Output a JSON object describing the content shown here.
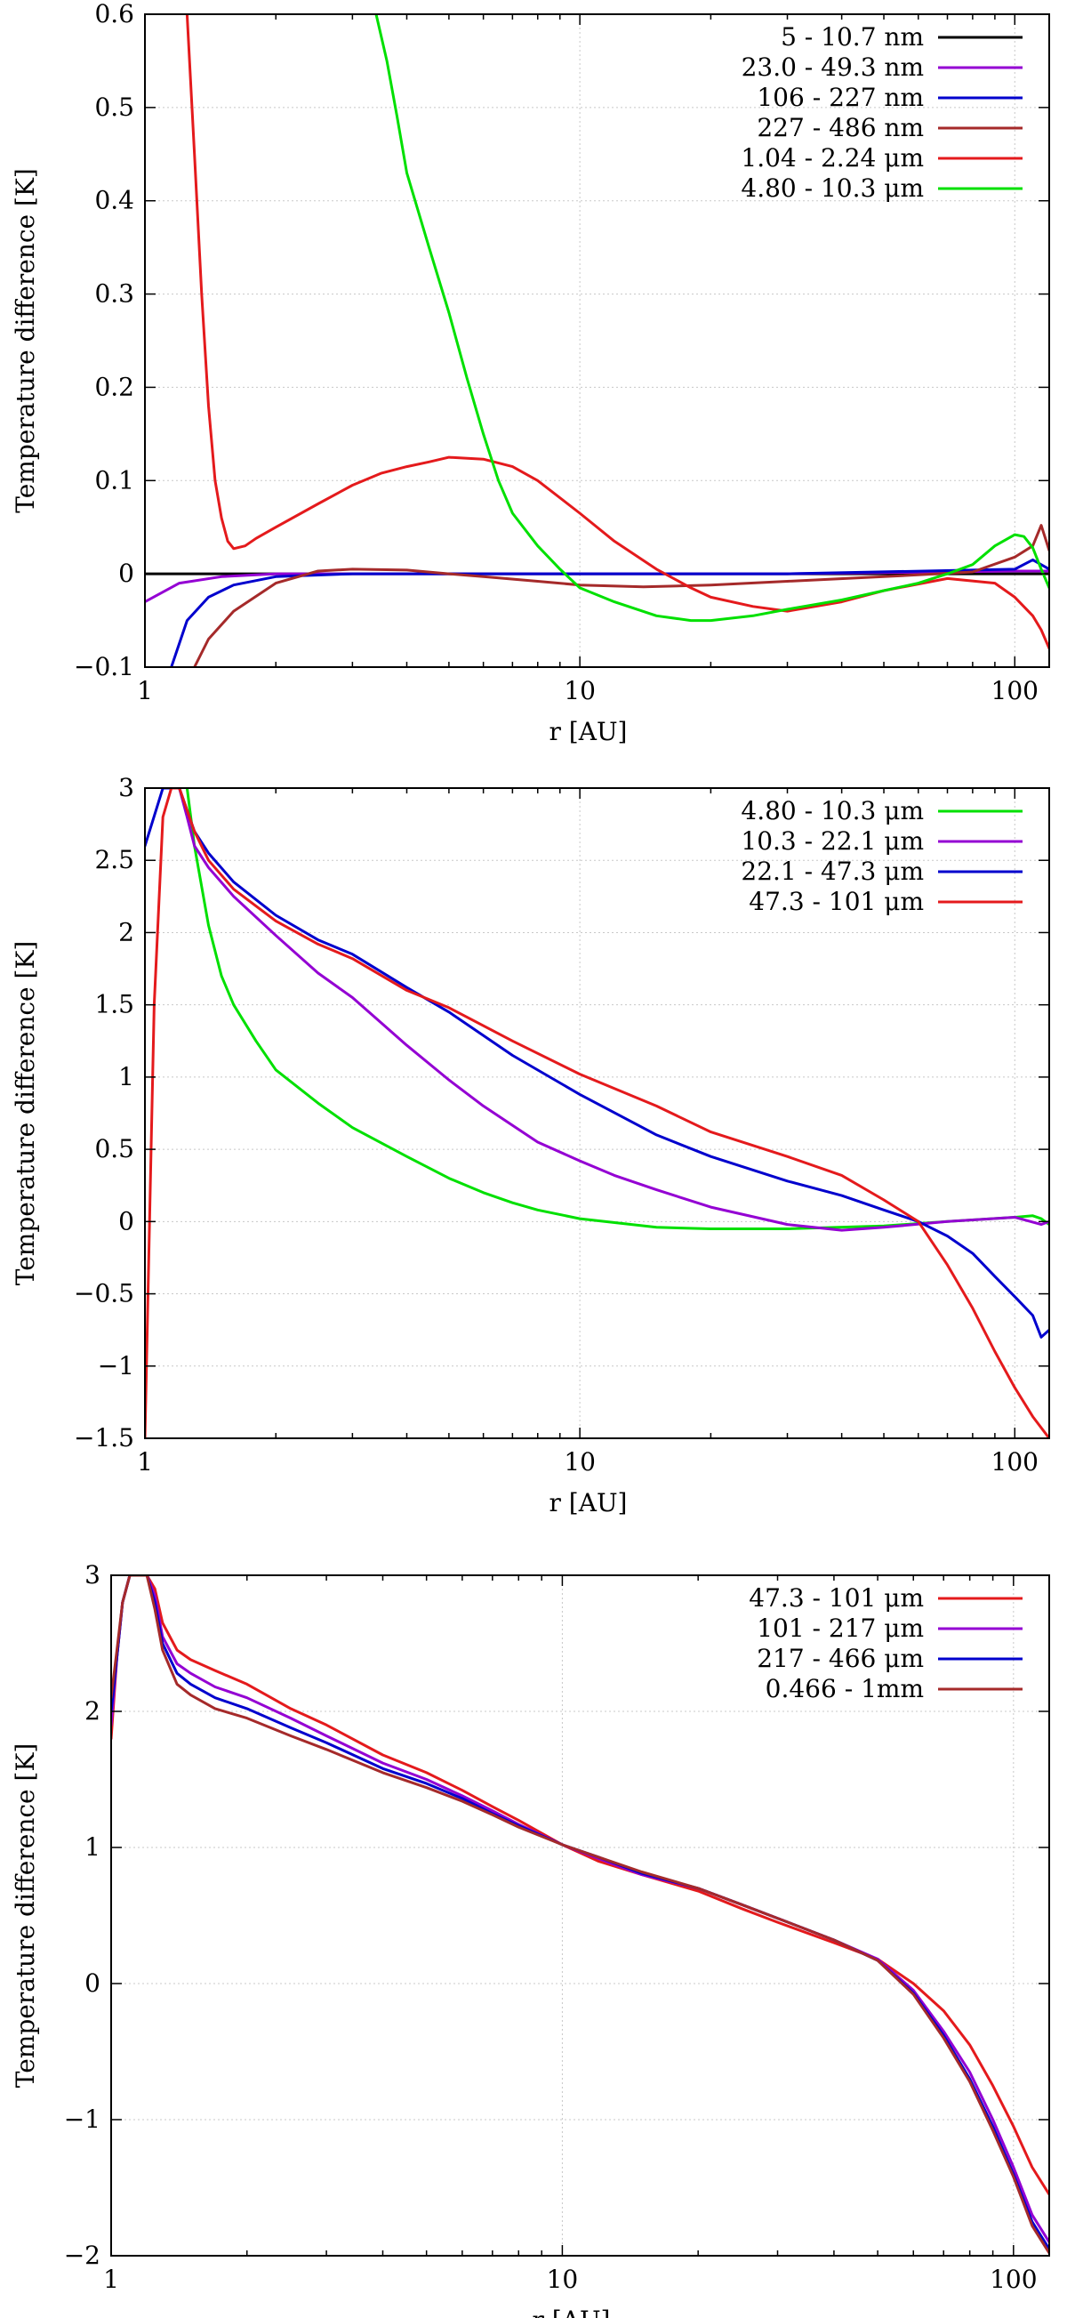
{
  "chart_data": [
    {
      "type": "line",
      "xscale": "log",
      "xlim": [
        1,
        120
      ],
      "ylim": [
        -0.1,
        0.6
      ],
      "xticks": [
        1,
        10,
        100
      ],
      "xtick_labels": [
        "1",
        "10",
        "100"
      ],
      "yticks": [
        -0.1,
        0,
        0.1,
        0.2,
        0.3,
        0.4,
        0.5,
        0.6
      ],
      "ytick_labels": [
        "−0.1",
        "0",
        "0.1",
        "0.2",
        "0.3",
        "0.4",
        "0.5",
        "0.6"
      ],
      "xlabel": "r [AU]",
      "ylabel": "Temperature difference [K]",
      "grid": true,
      "legend": "top-right",
      "series": [
        {
          "name": "5 - 10.7 nm",
          "color": "#000000",
          "x": [
            1,
            120
          ],
          "y": [
            0,
            0
          ]
        },
        {
          "name": "23.0 - 49.3 nm",
          "color": "#9400d3",
          "x": [
            1,
            1.2,
            1.5,
            2,
            3,
            5,
            10,
            30,
            100,
            120
          ],
          "y": [
            -0.03,
            -0.01,
            -0.003,
            0,
            0,
            0,
            0,
            0,
            0.003,
            0.003
          ]
        },
        {
          "name": "106 - 227 nm",
          "color": "#0000cd",
          "x": [
            1.15,
            1.25,
            1.4,
            1.6,
            2,
            3,
            5,
            10,
            30,
            100,
            110,
            120
          ],
          "y": [
            -0.1,
            -0.05,
            -0.025,
            -0.012,
            -0.003,
            0,
            0,
            0,
            0,
            0.005,
            0.015,
            0.005
          ]
        },
        {
          "name": "227 - 486 nm",
          "color": "#a52a2a",
          "x": [
            1.3,
            1.4,
            1.6,
            2,
            2.5,
            3,
            4,
            5,
            6,
            8,
            10,
            14,
            20,
            30,
            50,
            80,
            100,
            110,
            115,
            120
          ],
          "y": [
            -0.1,
            -0.07,
            -0.04,
            -0.01,
            0.003,
            0.005,
            0.004,
            0,
            -0.003,
            -0.008,
            -0.012,
            -0.014,
            -0.012,
            -0.008,
            -0.003,
            0.002,
            0.018,
            0.03,
            0.052,
            0.025
          ]
        },
        {
          "name": "1.04 - 2.24 μm",
          "color": "#e41a1c",
          "x": [
            1.25,
            1.3,
            1.35,
            1.4,
            1.45,
            1.5,
            1.55,
            1.6,
            1.7,
            1.8,
            2,
            2.5,
            3,
            3.5,
            4,
            4.5,
            5,
            6,
            7,
            8,
            10,
            12,
            15,
            18,
            20,
            25,
            30,
            40,
            50,
            70,
            90,
            100,
            110,
            115,
            120
          ],
          "y": [
            0.6,
            0.45,
            0.3,
            0.18,
            0.1,
            0.06,
            0.035,
            0.027,
            0.03,
            0.038,
            0.05,
            0.075,
            0.095,
            0.108,
            0.115,
            0.12,
            0.125,
            0.123,
            0.115,
            0.1,
            0.065,
            0.035,
            0.005,
            -0.015,
            -0.025,
            -0.035,
            -0.04,
            -0.03,
            -0.018,
            -0.005,
            -0.01,
            -0.025,
            -0.045,
            -0.06,
            -0.08
          ]
        },
        {
          "name": "4.80 - 10.3 μm",
          "color": "#00e000",
          "x": [
            3.4,
            3.6,
            3.8,
            4,
            4.5,
            5,
            5.5,
            6,
            6.5,
            7,
            8,
            9,
            10,
            12,
            15,
            18,
            20,
            25,
            30,
            40,
            50,
            60,
            70,
            80,
            90,
            100,
            105,
            110,
            115,
            120
          ],
          "y": [
            0.6,
            0.55,
            0.49,
            0.43,
            0.35,
            0.28,
            0.21,
            0.15,
            0.1,
            0.065,
            0.03,
            0.005,
            -0.015,
            -0.03,
            -0.045,
            -0.05,
            -0.05,
            -0.045,
            -0.038,
            -0.028,
            -0.018,
            -0.01,
            0,
            0.01,
            0.03,
            0.042,
            0.04,
            0.028,
            0.005,
            -0.015
          ]
        }
      ]
    },
    {
      "type": "line",
      "xscale": "log",
      "xlim": [
        1,
        120
      ],
      "ylim": [
        -1.5,
        3
      ],
      "xticks": [
        1,
        10,
        100
      ],
      "xtick_labels": [
        "1",
        "10",
        "100"
      ],
      "yticks": [
        -1.5,
        -1,
        -0.5,
        0,
        0.5,
        1,
        1.5,
        2,
        2.5,
        3
      ],
      "ytick_labels": [
        "−1.5",
        "−1",
        "−0.5",
        "0",
        "0.5",
        "1",
        "1.5",
        "2",
        "2.5",
        "3"
      ],
      "xlabel": "r [AU]",
      "ylabel": "Temperature difference [K]",
      "grid": true,
      "legend": "top-right",
      "series": [
        {
          "name": "4.80 - 10.3 μm",
          "color": "#00e000",
          "x": [
            1.25,
            1.3,
            1.4,
            1.5,
            1.6,
            1.8,
            2,
            2.5,
            3,
            4,
            5,
            6,
            7,
            8,
            10,
            15,
            20,
            30,
            50,
            70,
            100,
            110,
            115,
            120
          ],
          "y": [
            3,
            2.6,
            2.05,
            1.7,
            1.5,
            1.25,
            1.05,
            0.82,
            0.65,
            0.45,
            0.3,
            0.2,
            0.13,
            0.08,
            0.02,
            -0.04,
            -0.05,
            -0.05,
            -0.03,
            0,
            0.03,
            0.04,
            0.02,
            -0.02
          ]
        },
        {
          "name": "10.3 - 22.1 μm",
          "color": "#9400d3",
          "x": [
            1.2,
            1.25,
            1.3,
            1.4,
            1.6,
            2,
            2.5,
            3,
            4,
            5,
            6,
            8,
            10,
            12,
            15,
            20,
            30,
            40,
            50,
            70,
            100,
            115,
            120
          ],
          "y": [
            3,
            2.8,
            2.6,
            2.45,
            2.25,
            1.98,
            1.72,
            1.55,
            1.22,
            0.98,
            0.8,
            0.55,
            0.42,
            0.32,
            0.22,
            0.1,
            -0.02,
            -0.06,
            -0.04,
            0,
            0.03,
            -0.02,
            0
          ]
        },
        {
          "name": "22.1 - 47.3 μm",
          "color": "#0000cd",
          "x": [
            1,
            1.1,
            1.2,
            1.3,
            1.4,
            1.6,
            2,
            2.5,
            3,
            4,
            5,
            7,
            10,
            15,
            20,
            30,
            40,
            50,
            60,
            70,
            80,
            90,
            100,
            110,
            115,
            120
          ],
          "y": [
            2.6,
            3,
            3,
            2.7,
            2.55,
            2.35,
            2.12,
            1.95,
            1.85,
            1.62,
            1.45,
            1.15,
            0.88,
            0.6,
            0.45,
            0.28,
            0.18,
            0.08,
            0,
            -0.1,
            -0.22,
            -0.38,
            -0.52,
            -0.65,
            -0.8,
            -0.75
          ]
        },
        {
          "name": "47.3 - 101 μm",
          "color": "#e41a1c",
          "x": [
            1,
            1.05,
            1.1,
            1.15,
            1.2,
            1.3,
            1.4,
            1.6,
            2,
            2.5,
            3,
            4,
            5,
            7,
            10,
            15,
            20,
            30,
            40,
            50,
            60,
            70,
            80,
            90,
            100,
            110,
            120
          ],
          "y": [
            -1.5,
            1.5,
            2.8,
            3,
            3,
            2.7,
            2.5,
            2.3,
            2.08,
            1.92,
            1.82,
            1.6,
            1.48,
            1.25,
            1.02,
            0.8,
            0.62,
            0.45,
            0.32,
            0.15,
            0,
            -0.3,
            -0.6,
            -0.9,
            -1.15,
            -1.35,
            -1.5
          ]
        }
      ]
    },
    {
      "type": "line",
      "xscale": "log",
      "xlim": [
        1,
        120
      ],
      "ylim": [
        -2,
        3
      ],
      "xticks": [
        1,
        10,
        100
      ],
      "xtick_labels": [
        "1",
        "10",
        "100"
      ],
      "yticks": [
        -2,
        -1,
        0,
        1,
        2,
        3
      ],
      "ytick_labels": [
        "−2",
        "−1",
        "0",
        "1",
        "2",
        "3"
      ],
      "xlabel": "r [AU]",
      "ylabel": "Temperature difference [K]",
      "grid": true,
      "legend": "top-right",
      "series": [
        {
          "name": "47.3 - 101 μm",
          "color": "#e41a1c",
          "x": [
            1,
            1.03,
            1.06,
            1.1,
            1.15,
            1.2,
            1.25,
            1.3,
            1.4,
            1.5,
            1.7,
            2,
            2.5,
            3,
            4,
            5,
            6,
            7,
            8,
            10,
            12,
            15,
            20,
            25,
            30,
            40,
            50,
            60,
            70,
            80,
            90,
            100,
            110,
            120
          ],
          "y": [
            1.8,
            2.4,
            2.8,
            3,
            3,
            3,
            2.9,
            2.65,
            2.45,
            2.38,
            2.3,
            2.2,
            2.02,
            1.9,
            1.68,
            1.55,
            1.42,
            1.3,
            1.2,
            1.02,
            0.9,
            0.8,
            0.68,
            0.55,
            0.45,
            0.3,
            0.18,
            0,
            -0.2,
            -0.45,
            -0.75,
            -1.05,
            -1.35,
            -1.55
          ]
        },
        {
          "name": "101 - 217 μm",
          "color": "#9400d3",
          "x": [
            1,
            1.03,
            1.06,
            1.1,
            1.15,
            1.2,
            1.25,
            1.3,
            1.4,
            1.5,
            1.7,
            2,
            2.5,
            3,
            4,
            5,
            6,
            7,
            8,
            10,
            12,
            15,
            20,
            25,
            30,
            40,
            50,
            60,
            70,
            80,
            90,
            100,
            110,
            120
          ],
          "y": [
            1.9,
            2.4,
            2.8,
            3,
            3,
            3,
            2.85,
            2.55,
            2.35,
            2.28,
            2.18,
            2.1,
            1.95,
            1.82,
            1.62,
            1.5,
            1.38,
            1.27,
            1.17,
            1.02,
            0.92,
            0.8,
            0.7,
            0.58,
            0.48,
            0.32,
            0.18,
            -0.05,
            -0.35,
            -0.65,
            -1,
            -1.35,
            -1.7,
            -1.9
          ]
        },
        {
          "name": "217 - 466 μm",
          "color": "#0000cd",
          "x": [
            1,
            1.03,
            1.06,
            1.1,
            1.15,
            1.2,
            1.25,
            1.3,
            1.4,
            1.5,
            1.7,
            2,
            2.5,
            3,
            4,
            5,
            6,
            7,
            8,
            10,
            12,
            15,
            20,
            25,
            30,
            40,
            50,
            60,
            70,
            80,
            90,
            100,
            110,
            120
          ],
          "y": [
            2,
            2.4,
            2.8,
            3,
            3,
            3,
            2.8,
            2.5,
            2.28,
            2.2,
            2.1,
            2.02,
            1.88,
            1.77,
            1.58,
            1.47,
            1.36,
            1.25,
            1.16,
            1.02,
            0.93,
            0.81,
            0.7,
            0.58,
            0.48,
            0.32,
            0.17,
            -0.07,
            -0.38,
            -0.7,
            -1.05,
            -1.4,
            -1.75,
            -1.95
          ]
        },
        {
          "name": "0.466 - 1mm",
          "color": "#a52a2a",
          "x": [
            1,
            1.03,
            1.06,
            1.1,
            1.15,
            1.2,
            1.25,
            1.3,
            1.4,
            1.5,
            1.7,
            2,
            2.5,
            3,
            4,
            5,
            6,
            7,
            8,
            10,
            12,
            15,
            20,
            25,
            30,
            40,
            50,
            60,
            70,
            80,
            90,
            100,
            110,
            120
          ],
          "y": [
            2.1,
            2.45,
            2.8,
            3,
            3,
            3,
            2.75,
            2.45,
            2.2,
            2.12,
            2.02,
            1.95,
            1.82,
            1.72,
            1.55,
            1.44,
            1.34,
            1.24,
            1.15,
            1.02,
            0.93,
            0.82,
            0.7,
            0.58,
            0.48,
            0.32,
            0.17,
            -0.08,
            -0.4,
            -0.72,
            -1.08,
            -1.42,
            -1.78,
            -1.98
          ]
        }
      ]
    }
  ]
}
